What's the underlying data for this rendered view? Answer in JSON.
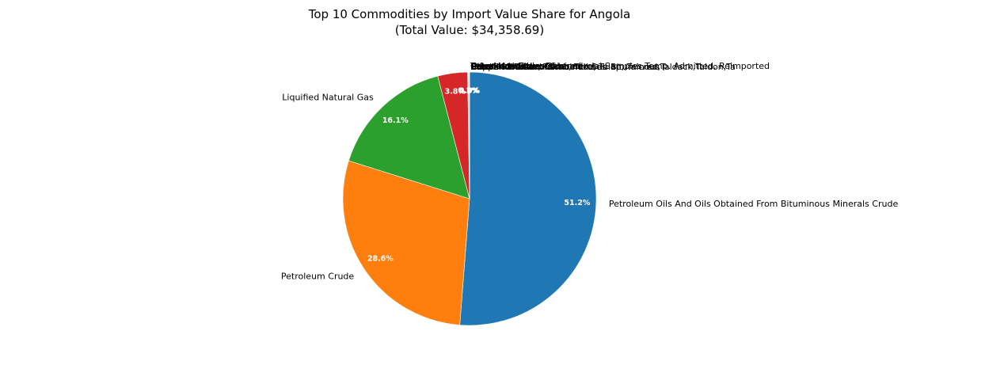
{
  "chart_data": {
    "type": "pie",
    "title": "Top 10 Commodities by Import Value Share for Angola",
    "subtitle": "(Total Value: $34,358.69)",
    "start_angle_deg": 90,
    "direction": "clockwise",
    "slices": [
      {
        "label": "Petroleum Oils And Oils Obtained From Bituminous Minerals Crude",
        "pct_label": "51.2%",
        "value": 51.2,
        "color": "#1f77b4"
      },
      {
        "label": "Petroleum Crude",
        "pct_label": "28.6%",
        "value": 28.6,
        "color": "#ff7f0e"
      },
      {
        "label": "Liquified Natural Gas",
        "pct_label": "16.1%",
        "value": 16.1,
        "color": "#2ca02c"
      },
      {
        "label": "",
        "pct_label": "3.8%",
        "value": 3.8,
        "color": "#d62728"
      },
      {
        "label": "",
        "pct_label": "0.1%",
        "value": 0.1,
        "color": "#9467bd"
      },
      {
        "label": "",
        "pct_label": "0.1%",
        "value": 0.05,
        "color": "#8c564b"
      },
      {
        "label": "",
        "pct_label": "0.0%",
        "value": 0.03,
        "color": "#e377c2"
      },
      {
        "label": "",
        "pct_label": "0.0%",
        "value": 0.02,
        "color": "#7f7f7f"
      },
      {
        "label": "",
        "pct_label": "0.0%",
        "value": 0.02,
        "color": "#bcbd22"
      },
      {
        "label": "",
        "pct_label": "0.0%",
        "value": 0.02,
        "color": "#17becf"
      }
    ],
    "overlapping_label_text": [
      "Other Moveables, Commercial Samples,Temp. Admitted, Reimported",
      "Copper Ores And Concentrates",
      "Petroleum Coke, Calcined",
      "Bituminous Coal Combined Sub Bituminous",
      "Petroleum Bitumen",
      "Paraffin Waxes",
      "Tobacco Unmanufactured",
      "Crude Oil Tabor, Takab, Take, Talap, Talcred,Taldack,Taldon,Ta"
    ]
  }
}
